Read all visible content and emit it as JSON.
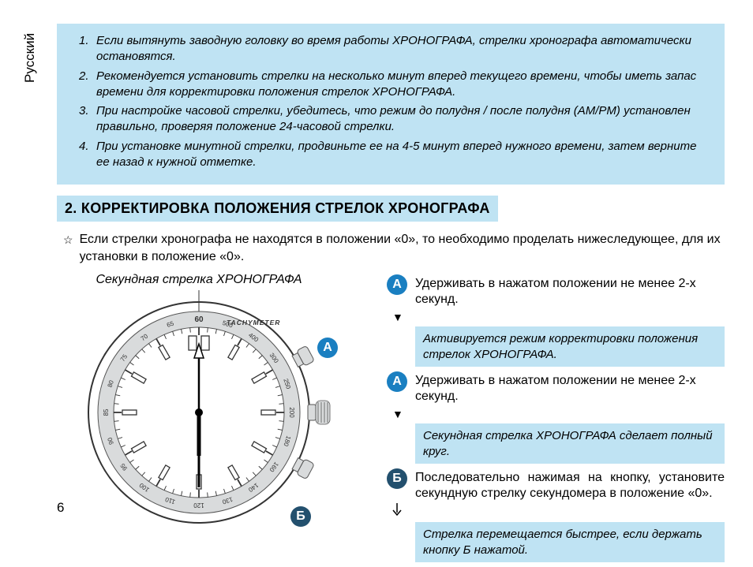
{
  "language_label": "Русский",
  "page_number": "6",
  "notes": [
    "Если вытянуть заводную головку во время работы ХРОНОГРАФА, стрелки хронографа автоматически остановятся.",
    "Рекомендуется установить стрелки на несколько минут вперед текущего времени, чтобы иметь запас времени для корректировки положения  стрелок ХРОНОГРАФА.",
    "При настройке часовой стрелки, убедитесь, что режим до полудня / после полудня (AM/PM) установлен правильно, проверяя положение 24-часовой стрелки.",
    "При установке минутной стрелки, продвиньте ее на 4-5 минут вперед нужного времени, затем верните ее назад к нужной отметке."
  ],
  "section_title": "2.  КОРРЕКТИРОВКА ПОЛОЖЕНИЯ СТРЕЛОК ХРОНОГРАФА",
  "star_text": "Если стрелки хронографа не находятся в положении «0», то необходимо проделать нижеследующее, для их установки  в положение «0».",
  "watch_label": "Секундная стрелка ХРОНОГРАФА",
  "watch": {
    "button_a": "A",
    "button_b": "Б",
    "tachymeter_label": "TACHYMETER",
    "tachy_60": "60",
    "tachy_numbers": [
      "500",
      "400",
      "300",
      "250",
      "200",
      "180",
      "160",
      "140",
      "130",
      "120",
      "110",
      "100",
      "95",
      "90",
      "85",
      "80",
      "75",
      "70",
      "65"
    ],
    "hour_marks": [
      "12",
      "1",
      "2",
      "3",
      "4",
      "5",
      "6",
      "7",
      "8",
      "9",
      "10",
      "11"
    ],
    "colors": {
      "badge_blue": "#1a7fc1",
      "badge_dark": "#23506e",
      "bezel": "#8a8d8f",
      "dial": "#ffffff",
      "line": "#555555"
    }
  },
  "steps": {
    "a1_text": "Удерживать в нажатом положении не менее 2-х секунд.",
    "info1": "Активируется режим корректировки положения стрелок ХРОНОГРАФА.",
    "a2_text": "Удерживать в нажатом положении не менее 2-х секунд.",
    "info2": "Секундная стрелка ХРОНОГРАФА сделает полный круг.",
    "b_text": "Последовательно нажимая на кнопку, установите секундную стрелку секундомера в положение «0».",
    "info3": "Стрелка перемещается быстрее, если держать кнопку Б нажатой.",
    "badge_a": "A",
    "badge_b": "Б"
  }
}
